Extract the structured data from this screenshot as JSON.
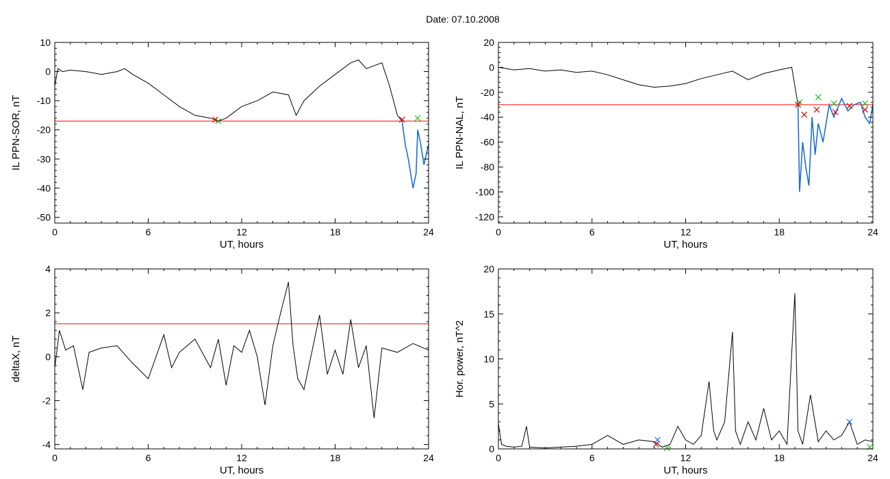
{
  "title": "Date:  07.10.2008",
  "colors": {
    "trace": "#000000",
    "threshold": "#ff0000",
    "highlight": "#1a6fd4",
    "marker_green": "#22bb22",
    "marker_red": "#dd0000",
    "marker_blue": "#2070e0"
  },
  "chart_data": [
    {
      "type": "line",
      "panel": "top-left",
      "xlabel": "UT, hours",
      "ylabel": "IL PPN-SOR, nT",
      "xlim": [
        0,
        24
      ],
      "ylim": [
        -52,
        10
      ],
      "xticks": [
        0,
        6,
        12,
        18,
        24
      ],
      "yticks": [
        10,
        0,
        -10,
        -20,
        -30,
        -40,
        -50
      ],
      "threshold": -17,
      "series": [
        {
          "values_x": [
            0,
            0.2,
            0.5,
            1,
            2,
            3,
            4,
            4.5,
            5,
            6,
            7,
            8,
            9,
            10,
            10.5,
            11,
            12,
            13,
            14,
            15,
            15.5,
            16,
            17,
            18,
            19,
            19.5,
            20,
            21,
            21.5,
            22,
            22.3
          ],
          "values_y": [
            -5,
            1,
            0,
            0.5,
            0,
            -1,
            0,
            1,
            -1,
            -4,
            -8,
            -12,
            -15,
            -16,
            -17,
            -16,
            -12,
            -10,
            -7,
            -8,
            -15,
            -10,
            -5,
            -1,
            3,
            4,
            1,
            3,
            -5,
            -15,
            -17
          ]
        },
        {
          "values_x": [
            22.3,
            22.5,
            22.7,
            23,
            23.2,
            23.3,
            23.5,
            23.7,
            24
          ],
          "values_y": [
            -17,
            -25,
            -30,
            -40,
            -35,
            -20,
            -25,
            -32,
            -25
          ],
          "highlight": true
        }
      ],
      "markers_green": [
        [
          10.5,
          -17
        ],
        [
          23.3,
          -16
        ]
      ],
      "markers_red": [
        [
          10.3,
          -16.5
        ],
        [
          22.3,
          -16.5
        ]
      ]
    },
    {
      "type": "line",
      "panel": "top-right",
      "xlabel": "UT, hours",
      "ylabel": "IL PPN-NAL, nT",
      "xlim": [
        0,
        24
      ],
      "ylim": [
        -125,
        20
      ],
      "xticks": [
        0,
        6,
        12,
        18,
        24
      ],
      "yticks": [
        20,
        0,
        -20,
        -40,
        -60,
        -80,
        -100,
        -120
      ],
      "threshold": -30,
      "series": [
        {
          "values_x": [
            0,
            1,
            2,
            3,
            4,
            5,
            6,
            7,
            8,
            9,
            10,
            11,
            12,
            13,
            14,
            15,
            16,
            17,
            18,
            18.8,
            19.2
          ],
          "values_y": [
            0,
            -2,
            -1,
            -3,
            -2,
            -4,
            -3,
            -6,
            -10,
            -14,
            -16,
            -15,
            -13,
            -9,
            -6,
            -3,
            -10,
            -5,
            -2,
            0,
            -30
          ]
        },
        {
          "values_x": [
            19.2,
            19.3,
            19.5,
            19.7,
            19.9,
            20.1,
            20.3,
            20.5,
            20.8,
            21.2,
            21.5,
            22,
            22.4,
            22.8,
            23.2,
            23.5,
            23.8,
            24
          ],
          "values_y": [
            -30,
            -100,
            -60,
            -80,
            -95,
            -40,
            -70,
            -45,
            -60,
            -30,
            -40,
            -25,
            -35,
            -30,
            -28,
            -40,
            -45,
            -30
          ],
          "highlight": true
        }
      ],
      "markers_green": [
        [
          19.3,
          -28
        ],
        [
          20.5,
          -24
        ],
        [
          21.5,
          -29
        ],
        [
          23.5,
          -29
        ]
      ],
      "markers_red": [
        [
          19.2,
          -30
        ],
        [
          19.6,
          -38
        ],
        [
          20.4,
          -34
        ],
        [
          21.6,
          -36
        ],
        [
          22.5,
          -31
        ],
        [
          23.5,
          -34
        ]
      ]
    },
    {
      "type": "line",
      "panel": "bottom-left",
      "xlabel": "UT, hours",
      "ylabel": "deltaX, nT",
      "xlim": [
        0,
        24
      ],
      "ylim": [
        -4.2,
        4
      ],
      "xticks": [
        0,
        6,
        12,
        18,
        24
      ],
      "yticks": [
        4,
        2,
        0,
        -2,
        -4
      ],
      "threshold": 1.5,
      "series": [
        {
          "values_x": [
            0,
            0.3,
            0.7,
            1.2,
            1.8,
            2.2,
            3,
            4,
            5,
            6,
            6.5,
            7,
            7.5,
            8,
            9,
            10,
            10.5,
            11,
            11.5,
            12,
            12.5,
            13,
            13.5,
            14,
            14.5,
            15,
            15.3,
            15.6,
            16,
            16.5,
            17,
            17.5,
            18,
            18.5,
            19,
            19.5,
            20,
            20.5,
            21,
            22,
            23,
            24
          ],
          "values_y": [
            -0.5,
            1.2,
            0.3,
            0.5,
            -1.5,
            0.2,
            0.4,
            0.5,
            -0.3,
            -1.0,
            0,
            1.0,
            -0.5,
            0.2,
            0.8,
            -0.5,
            0.8,
            -1.3,
            0.5,
            0.2,
            1.2,
            0,
            -2.2,
            0.5,
            2.0,
            3.4,
            0.5,
            -1.0,
            -1.5,
            0.2,
            1.9,
            -0.8,
            0.3,
            -0.8,
            1.7,
            -0.5,
            0.5,
            -2.8,
            0.4,
            0.2,
            0.6,
            0.3
          ]
        }
      ]
    },
    {
      "type": "line",
      "panel": "bottom-right",
      "xlabel": "UT, hours",
      "ylabel": "Hor. power, nT^2",
      "xlim": [
        0,
        24
      ],
      "ylim": [
        0,
        20
      ],
      "xticks": [
        0,
        6,
        12,
        18,
        24
      ],
      "yticks": [
        0,
        5,
        10,
        15,
        20
      ],
      "series": [
        {
          "values_x": [
            0,
            0.2,
            0.5,
            1,
            1.5,
            1.8,
            2,
            3,
            4,
            5,
            6,
            7,
            8,
            9,
            10,
            10.5,
            11,
            11.5,
            12,
            12.5,
            13,
            13.5,
            13.8,
            14,
            14.5,
            15,
            15.2,
            15.5,
            16,
            16.5,
            17,
            17.5,
            18,
            18.5,
            19,
            19.2,
            19.5,
            20,
            20.5,
            21,
            21.5,
            22,
            22.5,
            23,
            23.5,
            24
          ],
          "values_y": [
            2.8,
            0.5,
            0.3,
            0.2,
            0.3,
            2.5,
            0.2,
            0.1,
            0.2,
            0.3,
            0.5,
            1.5,
            0.5,
            1.0,
            0.8,
            0.2,
            0.5,
            2.5,
            1.0,
            0.5,
            1.5,
            7.5,
            2.0,
            1.0,
            3.0,
            13.0,
            2.0,
            0.5,
            3.0,
            1.0,
            4.5,
            1.0,
            2.0,
            0.5,
            17.3,
            2.0,
            0.5,
            6.0,
            0.8,
            2.0,
            1.0,
            1.5,
            3.0,
            0.5,
            1.0,
            0.8
          ]
        }
      ],
      "markers_blue": [
        [
          10.2,
          1.0
        ],
        [
          22.5,
          3.0
        ]
      ],
      "markers_red": [
        [
          10.1,
          0.5
        ]
      ],
      "markers_green": [
        [
          10.8,
          0.1
        ],
        [
          23.8,
          0.2
        ]
      ]
    }
  ]
}
